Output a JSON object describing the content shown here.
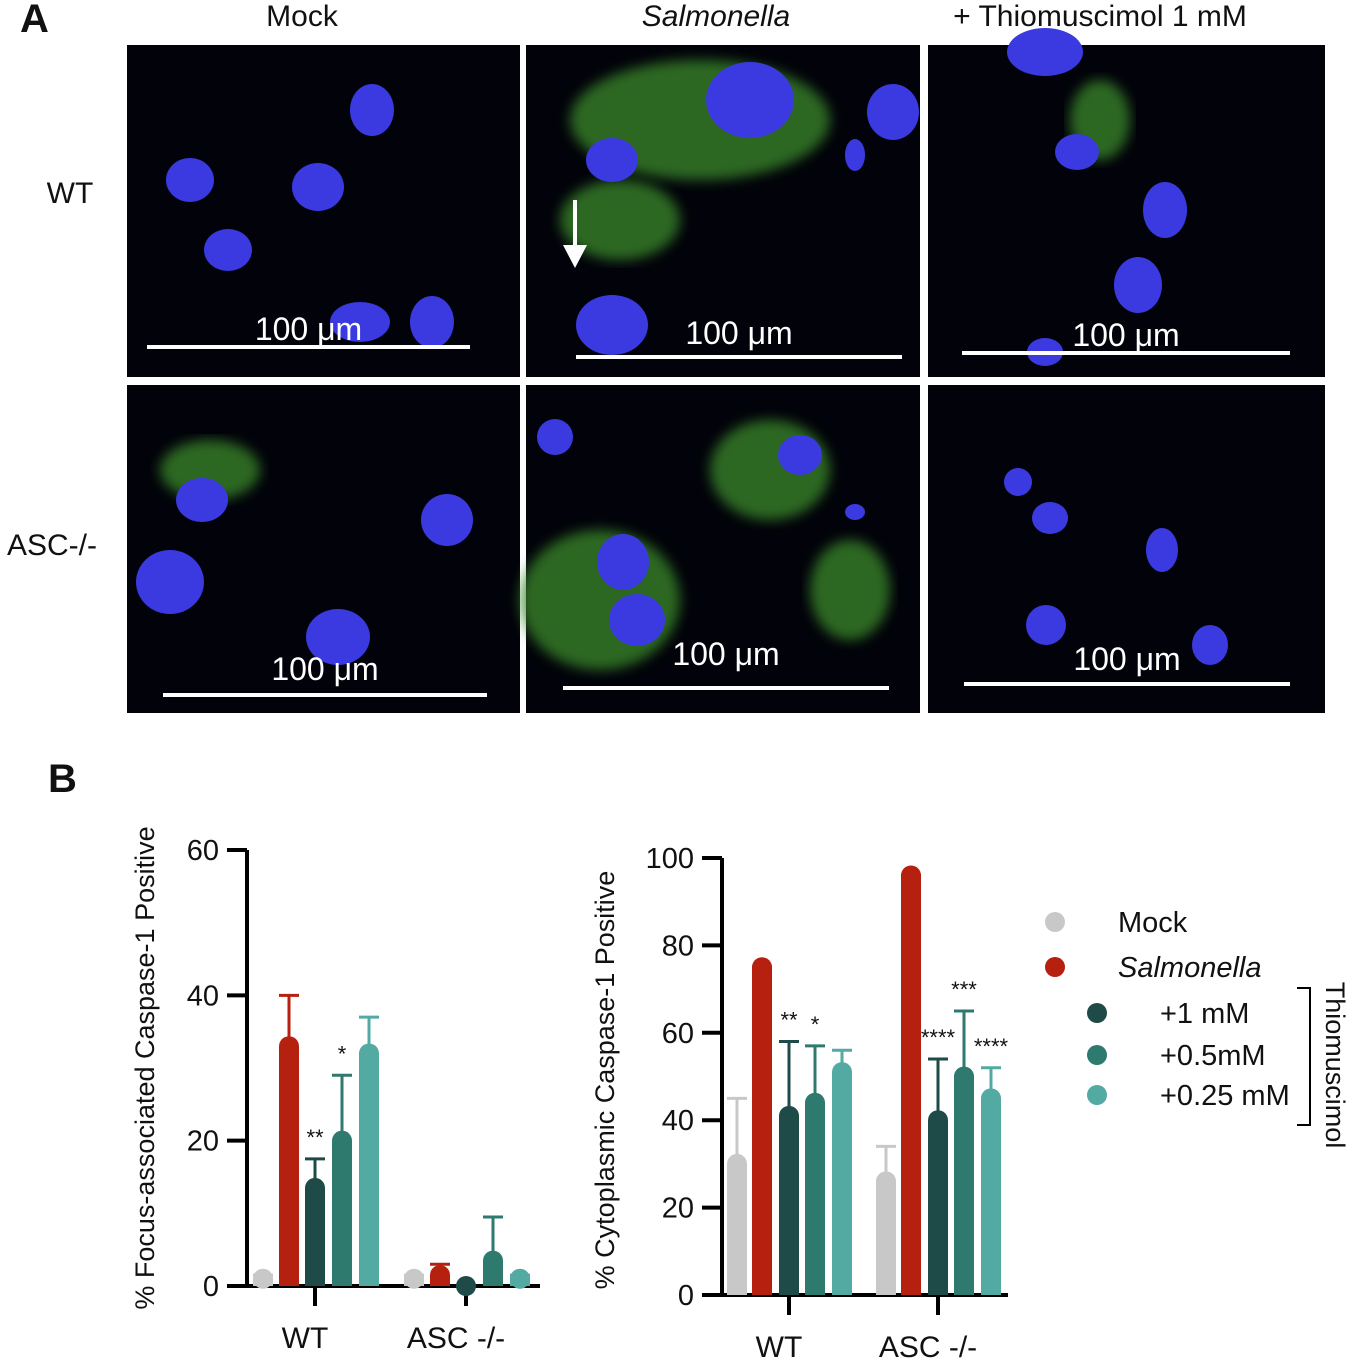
{
  "panel_a": {
    "label": "A",
    "columns": [
      "Mock",
      "Salmonella",
      "+ Thiomuscimol 1 mM"
    ],
    "rows": [
      "WT",
      "ASC-/-"
    ],
    "scale_bar": "100 μm"
  },
  "panel_b": {
    "label": "B"
  },
  "chart_data": [
    {
      "type": "bar",
      "ylabel": "% Focus-associated Caspase-1 Positive",
      "categories": [
        "WT",
        "ASC -/-"
      ],
      "ylim": [
        0,
        60
      ],
      "yticks": [
        0,
        20,
        40,
        60
      ],
      "series": [
        {
          "name": "Mock",
          "color": "#c8c8c8",
          "values": [
            1,
            1
          ],
          "errors": [
            0.5,
            0.5
          ],
          "annotations": [
            null,
            null
          ]
        },
        {
          "name": "Salmonella",
          "color": "#b5200f",
          "values": [
            33,
            1.5
          ],
          "errors": [
            7,
            1.5
          ],
          "annotations": [
            null,
            null
          ]
        },
        {
          "name": "+1 mM",
          "color": "#1e4a47",
          "values": [
            13.5,
            0
          ],
          "errors": [
            4,
            0
          ],
          "annotations": [
            "**",
            null
          ]
        },
        {
          "name": "+0.5mM",
          "color": "#2f7a6f",
          "values": [
            20,
            3.5
          ],
          "errors": [
            9,
            6
          ],
          "annotations": [
            "*",
            null
          ]
        },
        {
          "name": "+0.25 mM",
          "color": "#52aaa3",
          "values": [
            32,
            1
          ],
          "errors": [
            5,
            0.5
          ],
          "annotations": [
            null,
            null
          ]
        }
      ]
    },
    {
      "type": "bar",
      "ylabel": "% Cytoplasmic Caspase-1 Positive",
      "categories": [
        "WT",
        "ASC -/-"
      ],
      "ylim": [
        0,
        100
      ],
      "yticks": [
        0,
        20,
        40,
        60,
        80,
        100
      ],
      "legend_group_label": "Thiomuscimol",
      "series": [
        {
          "name": "Mock",
          "color": "#c8c8c8",
          "values": [
            30,
            26
          ],
          "errors": [
            15,
            8
          ],
          "annotations": [
            null,
            null
          ]
        },
        {
          "name": "Salmonella",
          "color": "#b5200f",
          "values": [
            75,
            96
          ],
          "errors": [
            0,
            0
          ],
          "annotations": [
            null,
            null
          ]
        },
        {
          "name": "+1 mM",
          "color": "#1e4a47",
          "values": [
            41,
            40
          ],
          "errors": [
            17,
            14
          ],
          "annotations": [
            "**",
            "****"
          ]
        },
        {
          "name": "+0.5mM",
          "color": "#2f7a6f",
          "values": [
            44,
            50
          ],
          "errors": [
            13,
            15
          ],
          "annotations": [
            "*",
            "***"
          ]
        },
        {
          "name": "+0.25 mM",
          "color": "#52aaa3",
          "values": [
            51,
            45
          ],
          "errors": [
            5,
            7
          ],
          "annotations": [
            null,
            "****"
          ]
        }
      ]
    }
  ]
}
